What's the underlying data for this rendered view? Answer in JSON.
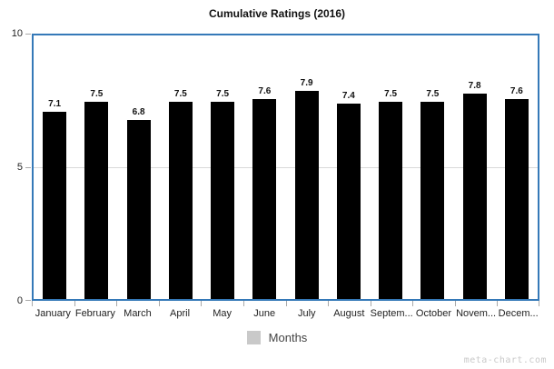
{
  "title": "Cumulative Ratings (2016)",
  "chart_data": {
    "type": "bar",
    "title": "Cumulative Ratings (2016)",
    "categories": [
      "January",
      "February",
      "March",
      "April",
      "May",
      "June",
      "July",
      "August",
      "Septem...",
      "October",
      "Novem...",
      "Decem..."
    ],
    "values": [
      7.1,
      7.5,
      6.8,
      7.5,
      7.5,
      7.6,
      7.9,
      7.4,
      7.5,
      7.5,
      7.8,
      7.6
    ],
    "value_labels": [
      "7.1",
      "7.5",
      "6.8",
      "7.5",
      "7.5",
      "7.6",
      "7.9",
      "7.4",
      "7.5",
      "7.5",
      "7.8",
      "7.6"
    ],
    "xlabel": "",
    "ylabel": "",
    "ylim": [
      0,
      10
    ],
    "ytick_labels": [
      "10",
      "5",
      "0"
    ],
    "grid": "horizontal line at 5 only",
    "legend_position": "bottom",
    "bar_color": "#000000",
    "plot_border_color": "#3579b8",
    "gridline_color": "#d9d9d9"
  },
  "legend": {
    "label": "Months",
    "swatch_color": "#c9c9c9"
  },
  "watermark": "meta-chart.com"
}
